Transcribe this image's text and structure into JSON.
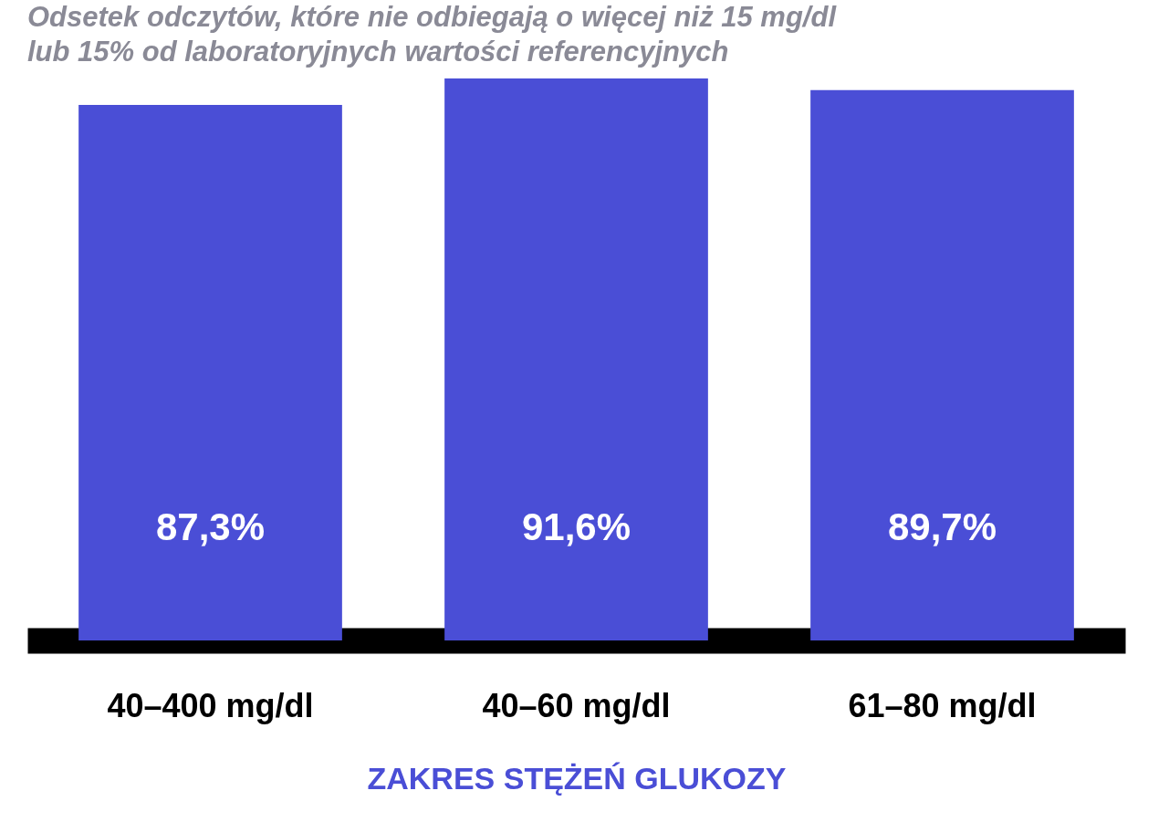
{
  "chart_data": {
    "type": "bar",
    "title": [
      "Odsetek odczytów, które nie odbiegają o więcej niż 15 mg/dl",
      "lub 15% od laboratoryjnych wartości referencyjnych"
    ],
    "categories": [
      "40–400 mg/dl",
      "40–60 mg/dl",
      "61–80 mg/dl"
    ],
    "values": [
      87.3,
      91.6,
      89.7
    ],
    "value_labels": [
      "87,3%",
      "91,6%",
      "89,7%"
    ],
    "color": "#4a4ed6",
    "xlabel": "ZAKRES STĘŻEŃ GLUKOZY",
    "grid": false
  }
}
